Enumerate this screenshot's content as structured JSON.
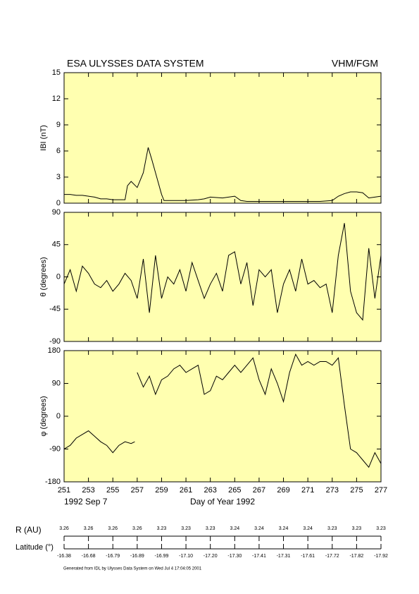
{
  "header": {
    "title": "ESA ULYSSES DATA SYSTEM",
    "instrument": "VHM/FGM"
  },
  "chart_data": [
    {
      "type": "line",
      "ylabel": "IBI (nT)",
      "color": "#000000",
      "background": "#ffffb0",
      "xlim": [
        251,
        277
      ],
      "ylim": [
        0,
        15
      ],
      "yticks": [
        0,
        3,
        6,
        9,
        12,
        15
      ],
      "x": [
        251,
        251.5,
        252,
        252.5,
        253,
        253.5,
        254,
        254.5,
        255,
        255.5,
        256,
        256.2,
        256.5,
        257,
        257.5,
        257.9,
        258.2,
        258.6,
        259,
        259.2,
        259.5,
        260,
        261,
        262,
        262.5,
        263,
        264,
        265,
        265.5,
        266,
        267,
        268,
        269,
        270,
        271,
        272,
        273,
        273.5,
        274,
        274.5,
        275,
        275.5,
        276,
        276.5,
        277
      ],
      "values": [
        1.0,
        1.0,
        0.9,
        0.9,
        0.8,
        0.7,
        0.5,
        0.5,
        0.4,
        0.4,
        0.4,
        2.0,
        2.5,
        1.8,
        3.5,
        6.4,
        5.0,
        3.0,
        1.0,
        0.3,
        0.3,
        0.3,
        0.3,
        0.4,
        0.5,
        0.7,
        0.6,
        0.8,
        0.3,
        0.2,
        0.2,
        0.2,
        0.2,
        0.2,
        0.2,
        0.2,
        0.3,
        0.8,
        1.1,
        1.3,
        1.3,
        1.2,
        0.6,
        0.7,
        0.8
      ]
    },
    {
      "type": "line",
      "ylabel": "θ (degrees)",
      "color": "#000000",
      "background": "#ffffb0",
      "xlim": [
        251,
        277
      ],
      "ylim": [
        -90,
        90
      ],
      "yticks": [
        -90,
        -45,
        0,
        45,
        90
      ],
      "x": [
        251,
        251.5,
        252,
        252.5,
        253,
        253.5,
        254,
        254.5,
        255,
        255.5,
        256,
        256.5,
        257,
        257.5,
        258,
        258.5,
        259,
        259.5,
        260,
        260.5,
        261,
        261.5,
        262,
        262.5,
        263,
        263.5,
        264,
        264.5,
        265,
        265.5,
        266,
        266.5,
        267,
        267.5,
        268,
        268.5,
        269,
        269.5,
        270,
        270.5,
        271,
        271.5,
        272,
        272.5,
        273,
        273.5,
        274,
        274.5,
        275,
        275.5,
        276,
        276.5,
        277
      ],
      "values": [
        -10,
        10,
        -20,
        15,
        5,
        -10,
        -15,
        -5,
        -20,
        -10,
        5,
        -5,
        -30,
        25,
        -50,
        30,
        -30,
        0,
        -10,
        10,
        -20,
        20,
        -5,
        -30,
        -10,
        5,
        -20,
        30,
        35,
        -10,
        20,
        -40,
        10,
        0,
        10,
        -50,
        -10,
        10,
        -20,
        25,
        -10,
        -5,
        -15,
        -10,
        -50,
        30,
        75,
        -20,
        -50,
        -60,
        40,
        -30,
        30
      ]
    },
    {
      "type": "line",
      "ylabel": "φ (degrees)",
      "color": "#000000",
      "background": "#ffffb0",
      "xlim": [
        251,
        277
      ],
      "ylim": [
        -180,
        180
      ],
      "yticks": [
        -180,
        -90,
        0,
        90,
        180
      ],
      "xticks": [
        251,
        253,
        255,
        257,
        259,
        261,
        263,
        265,
        267,
        269,
        271,
        273,
        275,
        277
      ],
      "xlabel": "Day of Year 1992",
      "start_date": "1992 Sep  7",
      "x": [
        251,
        251.5,
        252,
        252.5,
        253,
        253.5,
        254,
        254.5,
        255,
        255.5,
        256,
        256.5,
        256.8,
        256.9,
        257,
        257.5,
        258,
        258.5,
        259,
        259.5,
        260,
        260.5,
        261,
        261.5,
        262,
        262.5,
        263,
        263.5,
        264,
        264.5,
        265,
        265.5,
        266,
        266.5,
        267,
        267.5,
        268,
        268.5,
        269,
        269.5,
        270,
        270.5,
        271,
        271.5,
        272,
        272.5,
        273,
        273.5,
        274,
        274.5,
        275,
        275.5,
        276,
        276.5,
        277
      ],
      "values": [
        -90,
        -80,
        -60,
        -50,
        -40,
        -55,
        -70,
        -80,
        -100,
        -80,
        -70,
        -75,
        -70,
        null,
        120,
        80,
        110,
        60,
        100,
        110,
        130,
        140,
        120,
        130,
        140,
        60,
        70,
        110,
        100,
        120,
        140,
        120,
        140,
        160,
        100,
        60,
        130,
        90,
        40,
        120,
        170,
        140,
        150,
        140,
        150,
        150,
        140,
        160,
        30,
        -90,
        -100,
        -120,
        -140,
        -100,
        -130
      ]
    }
  ],
  "orbit": {
    "r_label": "R (AU)",
    "r_values": [
      "3.26",
      "3.26",
      "3.26",
      "3.26",
      "3.23",
      "3.23",
      "3.23",
      "3.24",
      "3.24",
      "3.24",
      "3.24",
      "3.23",
      "3.23",
      "3.23"
    ],
    "lat_label": "Latitude (°)",
    "lat_values": [
      "-16.38",
      "-16.68",
      "-16.79",
      "-16.89",
      "-16.99",
      "-17.10",
      "-17.20",
      "-17.30",
      "-17.41",
      "-17.31",
      "-17.61",
      "-17.72",
      "-17.82",
      "-17.92"
    ]
  },
  "footer": "Generated from IDL by Ulysses Data System on Wed Jul  4 17:04:05 2001"
}
